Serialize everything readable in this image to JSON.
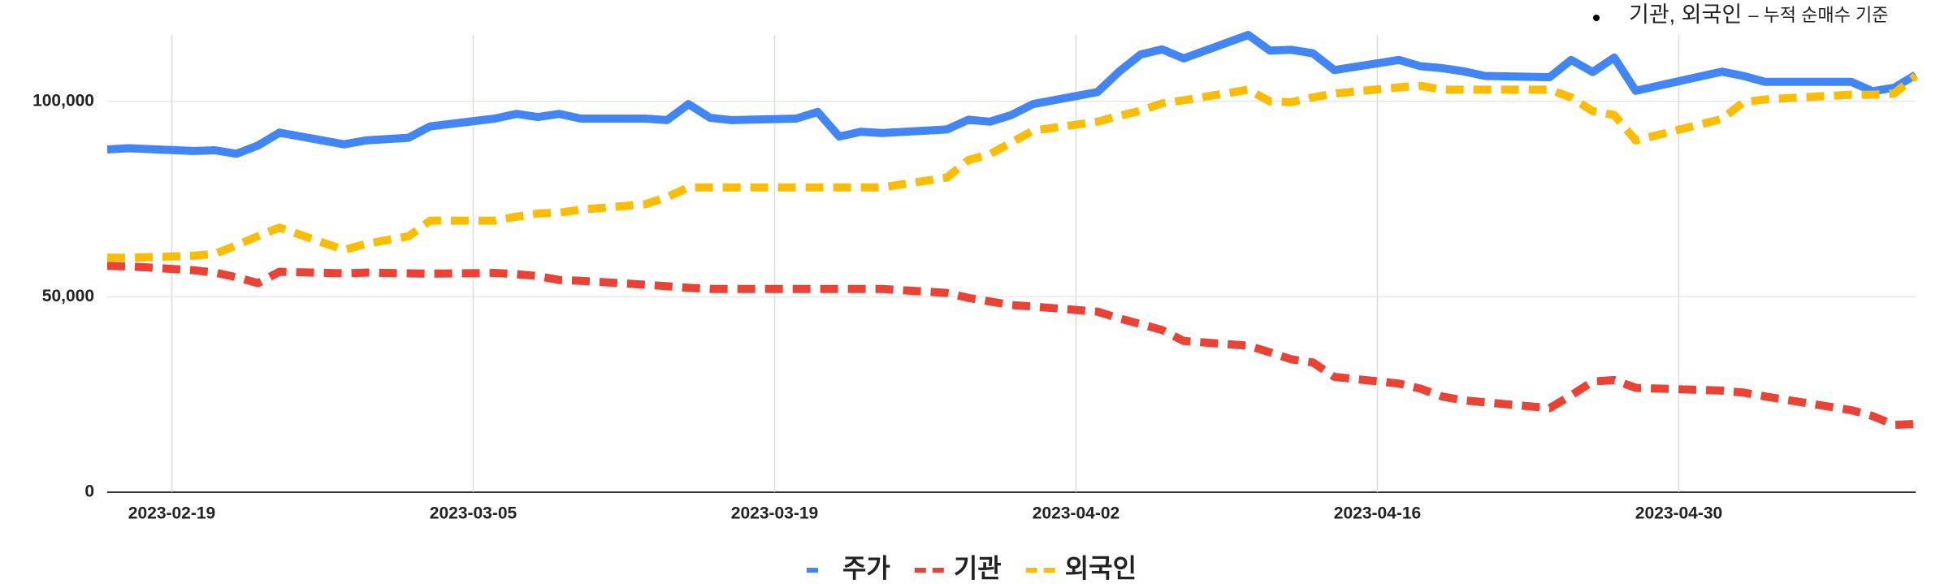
{
  "chart_data": {
    "type": "line",
    "annotation": [
      "기관, 외국인",
      "– 누적 순매수 기준"
    ],
    "x": [
      "2023-02-16",
      "2023-02-17",
      "2023-02-20",
      "2023-02-21",
      "2023-02-22",
      "2023-02-23",
      "2023-02-24",
      "2023-02-27",
      "2023-02-28",
      "2023-03-02",
      "2023-03-03",
      "2023-03-06",
      "2023-03-07",
      "2023-03-08",
      "2023-03-09",
      "2023-03-10",
      "2023-03-13",
      "2023-03-14",
      "2023-03-15",
      "2023-03-16",
      "2023-03-17",
      "2023-03-20",
      "2023-03-21",
      "2023-03-22",
      "2023-03-23",
      "2023-03-24",
      "2023-03-27",
      "2023-03-28",
      "2023-03-29",
      "2023-03-30",
      "2023-03-31",
      "2023-04-03",
      "2023-04-04",
      "2023-04-05",
      "2023-04-06",
      "2023-04-07",
      "2023-04-10",
      "2023-04-11",
      "2023-04-12",
      "2023-04-13",
      "2023-04-14",
      "2023-04-17",
      "2023-04-18",
      "2023-04-19",
      "2023-04-20",
      "2023-04-21",
      "2023-04-24",
      "2023-04-25",
      "2023-04-26",
      "2023-04-27",
      "2023-04-28",
      "2023-05-02",
      "2023-05-03",
      "2023-05-04",
      "2023-05-08",
      "2023-05-09",
      "2023-05-10",
      "2023-05-11"
    ],
    "series": [
      {
        "name": "주가",
        "color": "#4285f4",
        "style": "solid",
        "values": [
          87700,
          88000,
          87300,
          87500,
          86600,
          88700,
          92000,
          89000,
          90000,
          90700,
          93600,
          95600,
          96800,
          96000,
          96800,
          95600,
          95600,
          95200,
          99300,
          95800,
          95200,
          95600,
          97300,
          91000,
          92200,
          91900,
          92800,
          95300,
          94800,
          96500,
          99300,
          102400,
          107600,
          112000,
          113300,
          111000,
          117000,
          113000,
          113200,
          112300,
          108000,
          110600,
          109000,
          108500,
          107700,
          106500,
          106200,
          110600,
          107500,
          111200,
          102700,
          107600,
          106500,
          105000,
          105000,
          102600,
          103500,
          106800
        ]
      },
      {
        "name": "기관",
        "color": "#ea4335",
        "style": "dashed",
        "values": [
          57900,
          57800,
          56800,
          56200,
          55000,
          53500,
          56400,
          56000,
          56200,
          56000,
          55900,
          56100,
          55800,
          55300,
          54300,
          54100,
          53100,
          52700,
          52300,
          52000,
          52000,
          52000,
          52000,
          52000,
          52000,
          52000,
          51000,
          49700,
          48800,
          47900,
          47500,
          46200,
          44500,
          43000,
          41500,
          38700,
          37500,
          35800,
          34000,
          33200,
          29500,
          27800,
          26500,
          24500,
          23500,
          23000,
          21500,
          24800,
          28300,
          28700,
          26700,
          26000,
          25500,
          24500,
          21000,
          19500,
          17200,
          17500
        ]
      },
      {
        "name": "외국인",
        "color": "#fbbc04",
        "style": "dashed",
        "values": [
          60000,
          60000,
          60500,
          61000,
          63200,
          65500,
          67700,
          62000,
          63500,
          65500,
          69500,
          69500,
          70500,
          71300,
          71500,
          72300,
          73700,
          75500,
          78000,
          78000,
          78000,
          78000,
          78000,
          78000,
          78000,
          78000,
          80500,
          85000,
          86500,
          89500,
          92500,
          94800,
          96300,
          97600,
          99500,
          100300,
          103000,
          100000,
          99800,
          101000,
          102000,
          103600,
          104000,
          103000,
          103000,
          103000,
          103000,
          101000,
          97500,
          96500,
          90000,
          95500,
          99800,
          100500,
          101700,
          101700,
          102000,
          106500
        ]
      }
    ],
    "xlim": [
      "2023-02-16",
      "2023-05-11"
    ],
    "xticks": [
      "2023-02-19",
      "2023-03-05",
      "2023-03-19",
      "2023-04-02",
      "2023-04-16",
      "2023-04-30"
    ],
    "ylim": [
      0,
      117000
    ],
    "yticks": [
      0,
      {
        "value": 50000,
        "label": "50,000"
      },
      {
        "value": 100000,
        "label": "100,000"
      }
    ],
    "grid": true,
    "legend": "bottom"
  }
}
